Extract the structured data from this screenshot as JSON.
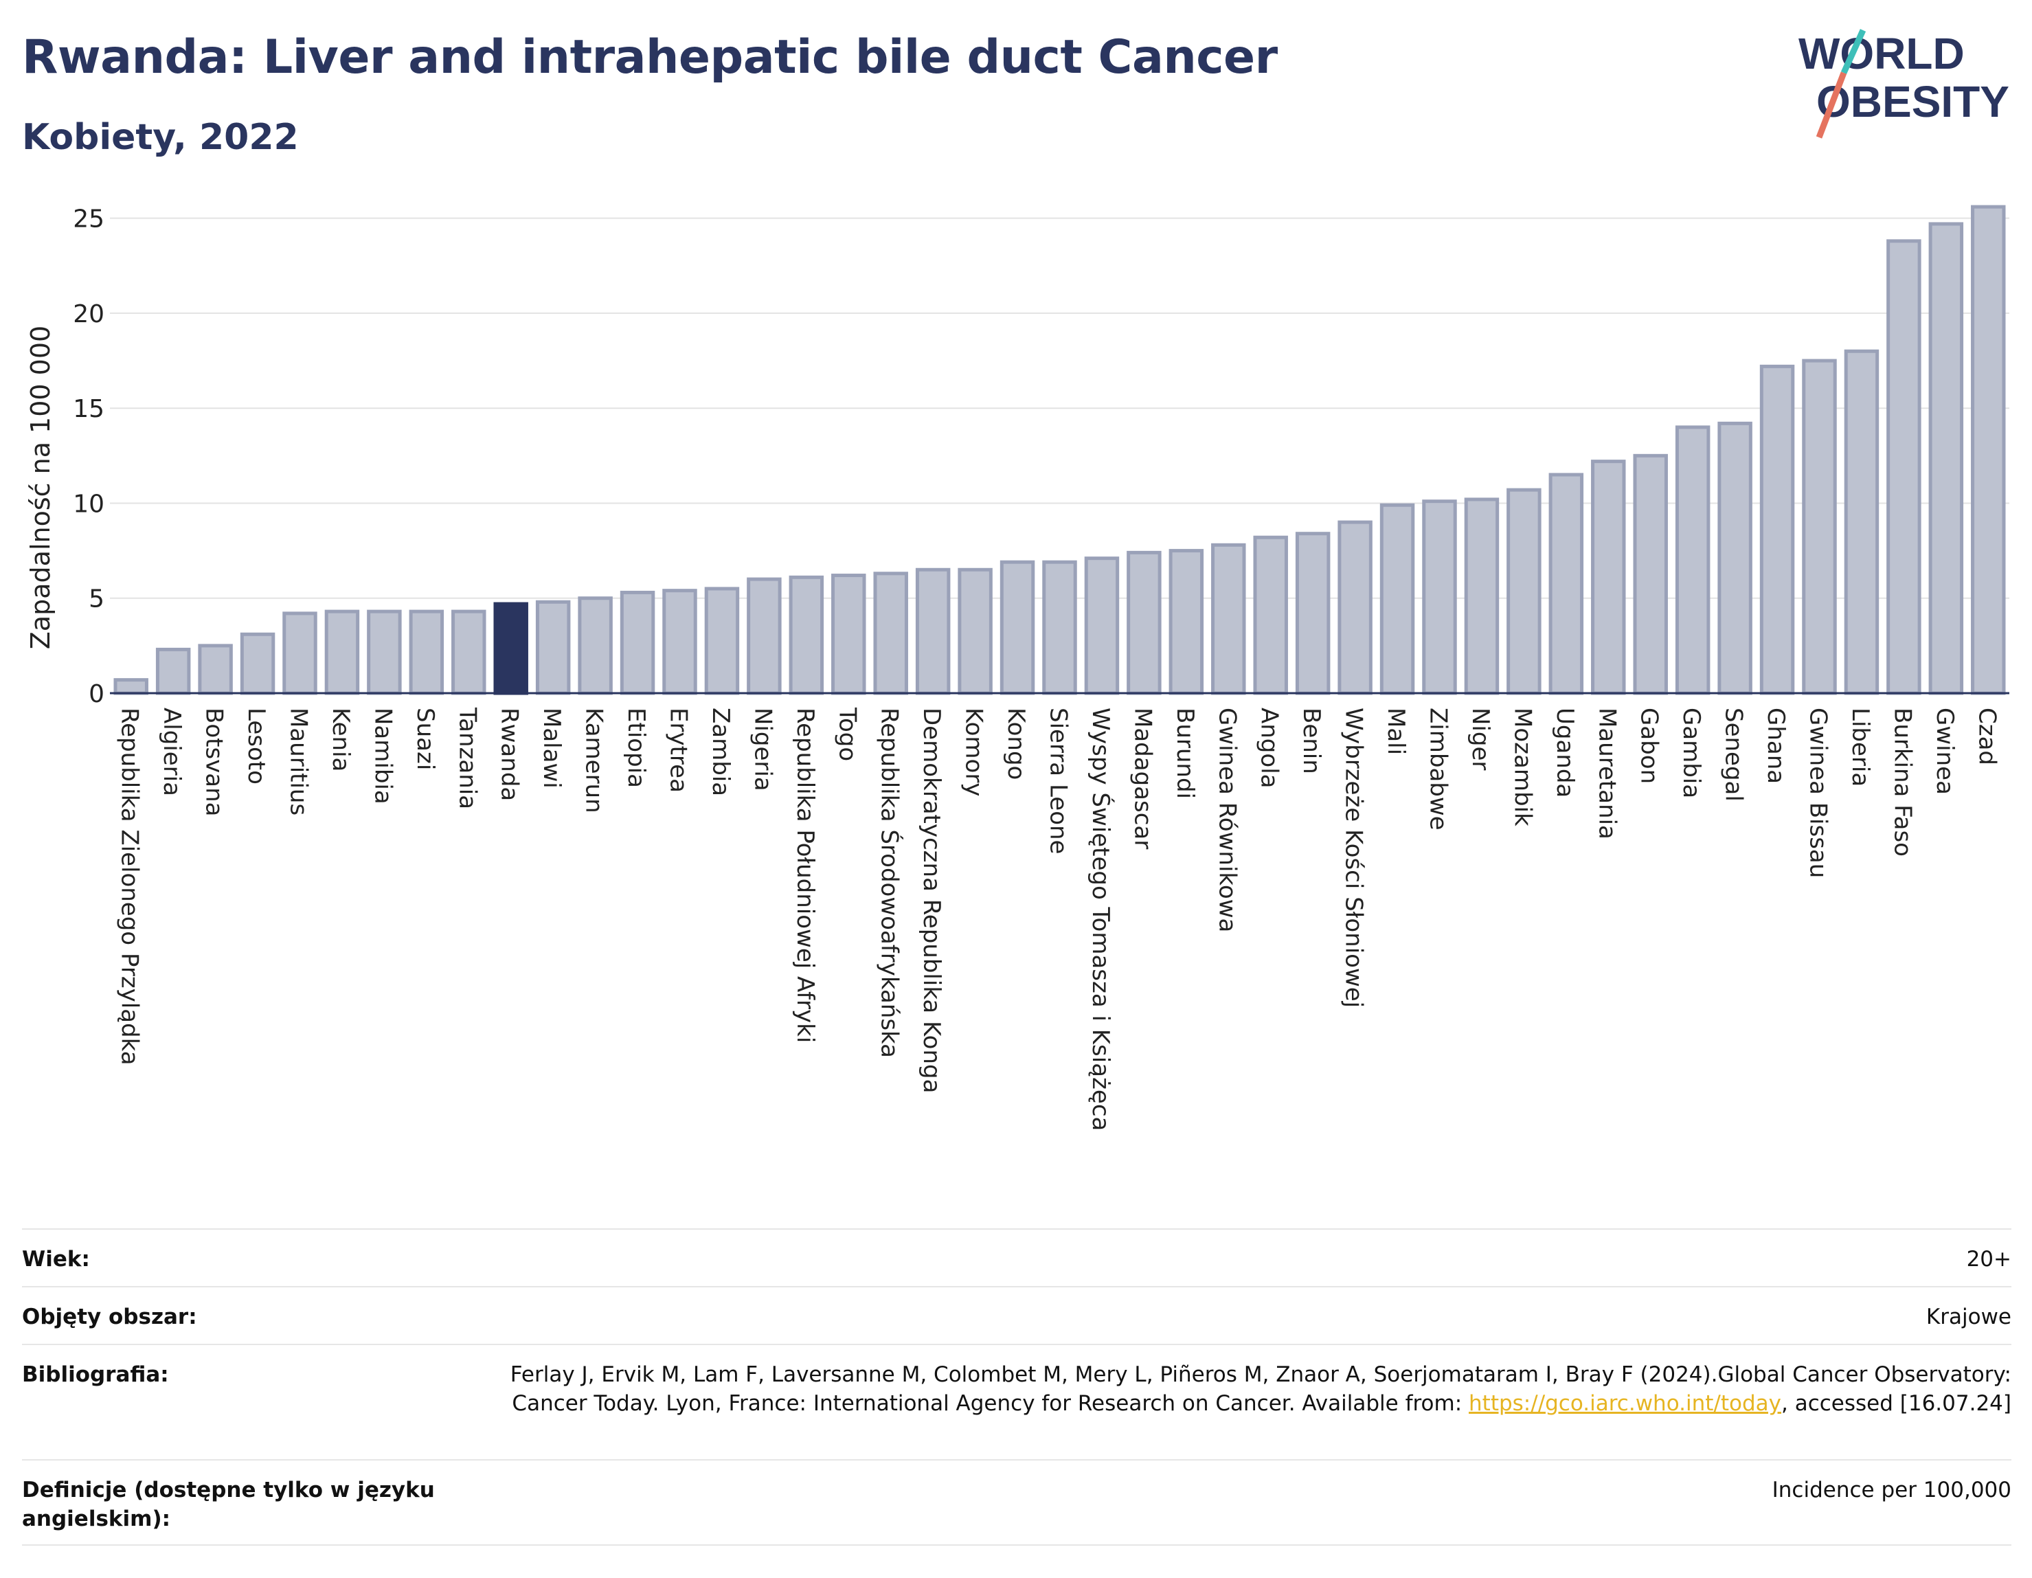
{
  "header": {
    "title": "Rwanda: Liver and intrahepatic bile duct Cancer",
    "subtitle": "Kobiety, 2022"
  },
  "logo": {
    "line1": "WORLD",
    "line2": "OBESITY",
    "accent_colors": [
      "#3ebfb9",
      "#e5735f"
    ]
  },
  "chart_data": {
    "type": "bar",
    "title": "Rwanda: Liver and intrahepatic bile duct Cancer",
    "subtitle": "Kobiety, 2022",
    "xlabel": "",
    "ylabel": "Zapadalność na 100 000",
    "ylim": [
      0,
      26
    ],
    "yticks": [
      0,
      5,
      10,
      15,
      20,
      25
    ],
    "grid": true,
    "highlight": "Rwanda",
    "colors": {
      "bar": "#bdc2d0",
      "bar_edge": "#9aa1b8",
      "highlight": "#2a355f"
    },
    "categories": [
      "Republika Zielonego Przylądka",
      "Algieria",
      "Botsvana",
      "Lesoto",
      "Mauritius",
      "Kenia",
      "Namibia",
      "Suazi",
      "Tanzania",
      "Rwanda",
      "Malawi",
      "Kamerun",
      "Etiopia",
      "Erytrea",
      "Zambia",
      "Nigeria",
      "Republika Południowej Afryki",
      "Togo",
      "Republika Środowoafrykańska",
      "Demokratyczna Republika Konga",
      "Komory",
      "Kongo",
      "Sierra Leone",
      "Wyspy Świętego Tomasza i Książęca",
      "Madagascar",
      "Burundi",
      "Gwinea Równikowa",
      "Angola",
      "Benin",
      "Wybrzeże Kości Słoniowej",
      "Mali",
      "Zimbabwe",
      "Niger",
      "Mozambik",
      "Uganda",
      "Mauretania",
      "Gabon",
      "Gambia",
      "Senegal",
      "Ghana",
      "Gwinea Bissau",
      "Liberia",
      "Burkina Faso",
      "Gwinea",
      "Czad"
    ],
    "values": [
      0.7,
      2.3,
      2.5,
      3.1,
      4.2,
      4.3,
      4.3,
      4.3,
      4.3,
      4.7,
      4.8,
      5.0,
      5.3,
      5.4,
      5.5,
      6.0,
      6.1,
      6.2,
      6.3,
      6.5,
      6.5,
      6.9,
      6.9,
      7.1,
      7.4,
      7.5,
      7.8,
      8.2,
      8.4,
      9.0,
      9.9,
      10.1,
      10.2,
      10.7,
      11.5,
      12.2,
      12.5,
      14.0,
      14.2,
      17.2,
      17.5,
      18.0,
      23.8,
      24.7,
      25.6
    ]
  },
  "meta": {
    "age_label": "Wiek:",
    "age_value": "20+",
    "coverage_label": "Objęty obszar:",
    "coverage_value": "Krajowe",
    "bibliography_label": "Bibliografia:",
    "bibliography_text_1": "Ferlay J, Ervik M, Lam F, Laversanne M, Colombet M, Mery L, Piñeros M, Znaor A, Soerjomataram I, Bray F (2024).Global Cancer Observatory: Cancer Today. Lyon, France: International Agency for Research on Cancer. Available from: ",
    "bibliography_link": "https://gco.iarc.who.int/today",
    "bibliography_text_2": ", accessed [16.07.24]",
    "definitions_label": "Definicje (dostępne tylko w języku angielskim):",
    "definitions_value": "Incidence per 100,000"
  }
}
